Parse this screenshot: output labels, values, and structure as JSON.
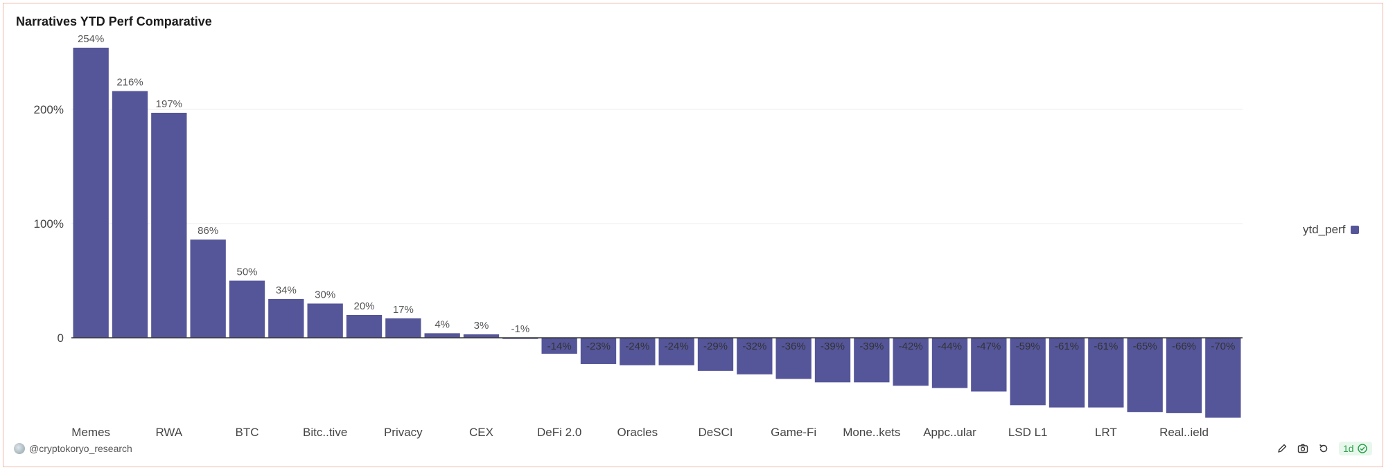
{
  "header": {
    "title": "Narratives YTD Perf Comparative"
  },
  "legend": {
    "label": "ytd_perf",
    "color": "#55559a"
  },
  "footer": {
    "user": "@cryptokoryo_research",
    "badge": "1d",
    "icons": [
      "edit-icon",
      "camera-icon",
      "refresh-icon",
      "check-circle-icon"
    ]
  },
  "chart_data": {
    "type": "bar",
    "series_name": "ytd_perf",
    "categories": [
      "Memes",
      "",
      "RWA",
      "",
      "BTC",
      "",
      "Bitc..tive",
      "",
      "Privacy",
      "",
      "CEX",
      "",
      "DeFi 2.0",
      "",
      "Oracles",
      "",
      "DeSCI",
      "",
      "Game-Fi",
      "",
      "Mone..kets",
      "",
      "Appc..ular",
      "",
      "LSD L1",
      "",
      "LRT",
      "",
      "Real..ield",
      ""
    ],
    "values": [
      254,
      216,
      197,
      86,
      50,
      34,
      30,
      20,
      17,
      4,
      3,
      -1,
      -14,
      -23,
      -24,
      -24,
      -29,
      -32,
      -36,
      -39,
      -39,
      -42,
      -44,
      -47,
      -59,
      -61,
      -61,
      -65,
      -66,
      -70
    ],
    "labels": [
      "254%",
      "216%",
      "197%",
      "86%",
      "50%",
      "34%",
      "30%",
      "20%",
      "17%",
      "4%",
      "3%",
      "-1%",
      "-14%",
      "-23%",
      "-24%",
      "-24%",
      "-29%",
      "-32%",
      "-36%",
      "-39%",
      "-39%",
      "-42%",
      "-44%",
      "-47%",
      "-59%",
      "-61%",
      "-61%",
      "-65%",
      "-66%",
      "-70%"
    ],
    "y_ticks": [
      {
        "value": 0,
        "label": "0"
      },
      {
        "value": 100,
        "label": "100%"
      },
      {
        "value": 200,
        "label": "200%"
      }
    ],
    "ylim": [
      -75,
      260
    ],
    "color": "#55559a",
    "legend_position": "right",
    "grid": true
  }
}
